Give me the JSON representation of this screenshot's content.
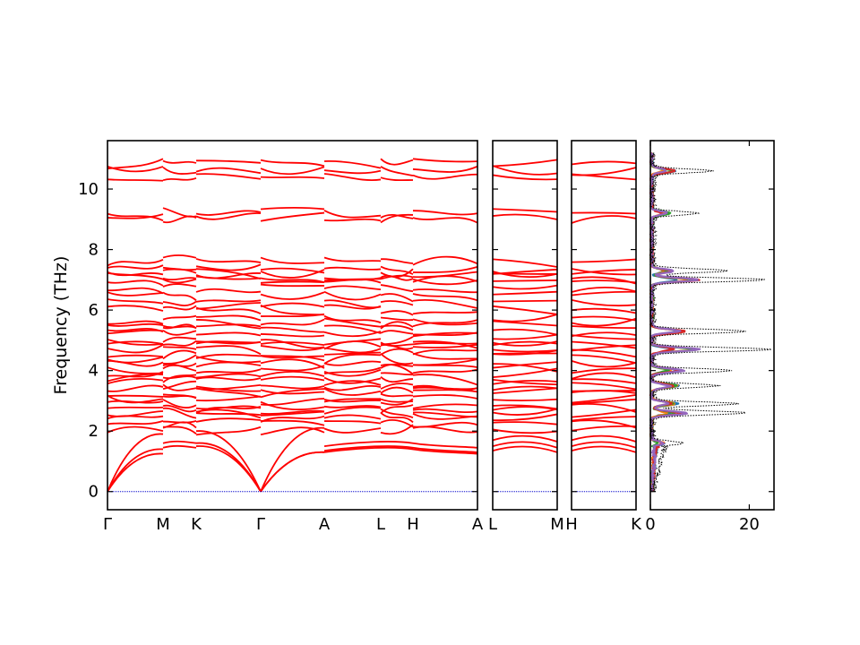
{
  "figure": {
    "ylabel": "Frequency (THz)",
    "band_color": "#ff0000",
    "zero_line_color": "#0000cc"
  },
  "chart_data": [
    {
      "type": "line",
      "title": "",
      "xlabel": "",
      "ylabel": "Frequency (THz)",
      "ylim": [
        -0.6,
        11.6
      ],
      "y_ticks": [
        0,
        2,
        4,
        6,
        8,
        10
      ],
      "x_tick_labels": [
        "Γ",
        "M",
        "K",
        "Γ",
        "A",
        "L",
        "H",
        "A"
      ],
      "grid": false,
      "series_note": "phonon branches (red lines), approximate read-off",
      "flat_branch_levels": [
        10.85,
        10.6,
        10.35,
        9.2,
        9.05,
        7.6,
        7.35,
        7.2,
        7.05,
        6.95,
        6.7,
        6.45,
        6.2,
        6.0,
        5.7,
        5.55,
        5.35,
        5.2,
        5.0,
        4.85,
        4.7,
        4.55,
        4.4,
        4.2,
        4.05,
        3.9,
        3.7,
        3.55,
        3.4,
        3.25,
        3.05,
        2.9,
        2.75,
        2.6,
        2.45,
        2.25,
        2.05
      ],
      "acoustic_maxima": {
        "Γ-M": 1.4,
        "M-K": 1.6,
        "Γ-A": 1.3,
        "A-L": 1.5
      }
    },
    {
      "type": "line",
      "ylim": [
        -0.6,
        11.6
      ],
      "x_tick_labels": [
        "L",
        "M"
      ],
      "grid": false
    },
    {
      "type": "line",
      "ylim": [
        -0.6,
        11.6
      ],
      "x_tick_labels": [
        "H",
        "K"
      ],
      "grid": false
    },
    {
      "type": "area",
      "xlim": [
        0,
        25
      ],
      "x_ticks": [
        0,
        20
      ],
      "x_tick_labels": [
        "0",
        "20"
      ],
      "ylim": [
        -0.6,
        11.6
      ],
      "grid": false,
      "note": "projected phonon density of states; dotted black = total",
      "total_dos_peaks": [
        {
          "freq": 1.6,
          "value": 6
        },
        {
          "freq": 2.6,
          "value": 19
        },
        {
          "freq": 2.9,
          "value": 17
        },
        {
          "freq": 3.5,
          "value": 13
        },
        {
          "freq": 4.0,
          "value": 16
        },
        {
          "freq": 4.7,
          "value": 24
        },
        {
          "freq": 5.3,
          "value": 19
        },
        {
          "freq": 7.0,
          "value": 23
        },
        {
          "freq": 7.3,
          "value": 15
        },
        {
          "freq": 9.2,
          "value": 9
        },
        {
          "freq": 10.6,
          "value": 12
        }
      ],
      "partial_colors": [
        "#1f77b4",
        "#ff7f0e",
        "#2ca02c",
        "#d62728",
        "#9467bd"
      ]
    }
  ]
}
